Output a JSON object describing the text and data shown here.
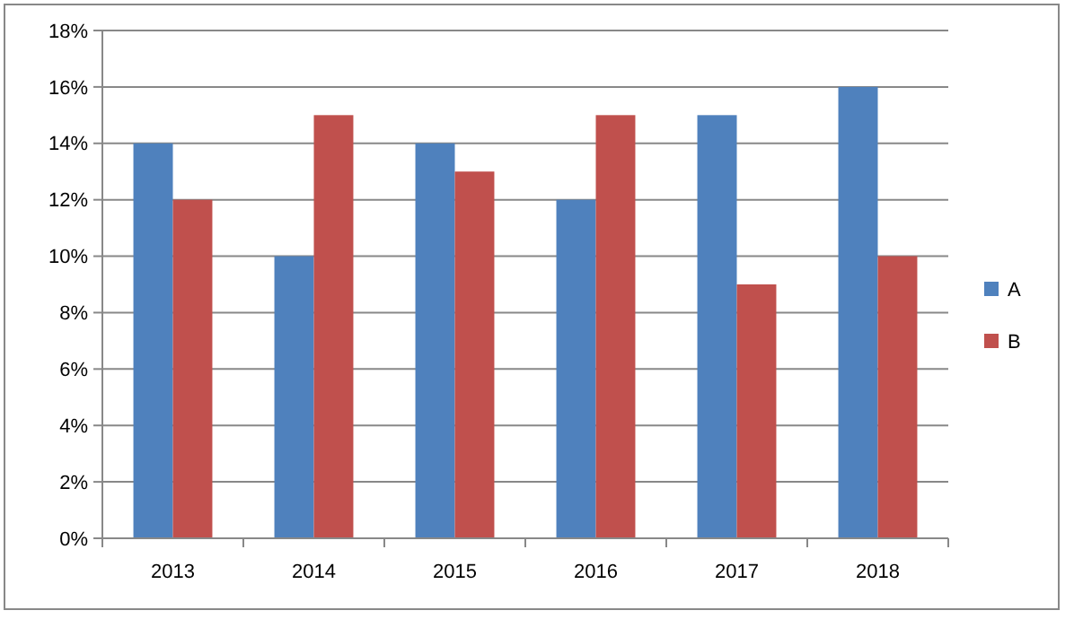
{
  "chart_data": {
    "type": "bar",
    "categories": [
      "2013",
      "2014",
      "2015",
      "2016",
      "2017",
      "2018"
    ],
    "series": [
      {
        "name": "A",
        "color": "#4f81bd",
        "values": [
          14,
          10,
          14,
          12,
          15,
          16
        ]
      },
      {
        "name": "B",
        "color": "#c0504d",
        "values": [
          12,
          15,
          13,
          15,
          9,
          10
        ]
      }
    ],
    "ylim": [
      0,
      18
    ],
    "yticks": [
      {
        "value": 0,
        "label": "0%"
      },
      {
        "value": 2,
        "label": "2%"
      },
      {
        "value": 4,
        "label": "4%"
      },
      {
        "value": 6,
        "label": "6%"
      },
      {
        "value": 8,
        "label": "8%"
      },
      {
        "value": 10,
        "label": "10%"
      },
      {
        "value": 12,
        "label": "12%"
      },
      {
        "value": 14,
        "label": "14%"
      },
      {
        "value": 16,
        "label": "16%"
      },
      {
        "value": 18,
        "label": "18%"
      }
    ],
    "grid": "y",
    "legend": "right"
  }
}
